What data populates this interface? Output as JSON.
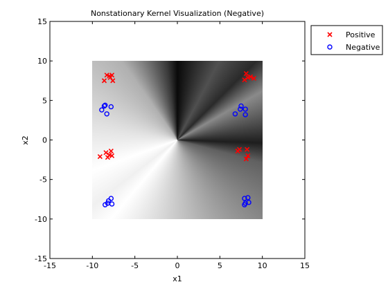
{
  "chart_data": {
    "type": "scatter",
    "title": "Nonstationary Kernel Visualization (Negative)",
    "xlabel": "x1",
    "ylabel": "x2",
    "xlim": [
      -15,
      15
    ],
    "ylim": [
      -15,
      15
    ],
    "xticks": [
      -15,
      -10,
      -5,
      0,
      5,
      10,
      15
    ],
    "yticks": [
      -15,
      -10,
      -5,
      0,
      5,
      10,
      15
    ],
    "grid": false,
    "legend_position": "outside-top-right",
    "background_field": {
      "kind": "angular-gradient",
      "xrange": [
        -10,
        10
      ],
      "yrange": [
        -10,
        10
      ]
    },
    "series": [
      {
        "name": "Positive",
        "marker": "x",
        "color": "#ff0000",
        "points": [
          [
            -8.3,
            8.2
          ],
          [
            -8.0,
            8.1
          ],
          [
            -7.7,
            8.2
          ],
          [
            -7.9,
            7.9
          ],
          [
            -8.6,
            7.5
          ],
          [
            -7.6,
            7.5
          ],
          [
            8.1,
            8.4
          ],
          [
            8.6,
            8.0
          ],
          [
            9.0,
            7.8
          ],
          [
            7.9,
            7.6
          ],
          [
            8.3,
            7.9
          ],
          [
            -9.1,
            -2.1
          ],
          [
            -8.4,
            -1.6
          ],
          [
            -7.8,
            -1.4
          ],
          [
            -8.2,
            -2.2
          ],
          [
            -7.7,
            -2.0
          ],
          [
            -8.0,
            -1.9
          ],
          [
            7.3,
            -1.2
          ],
          [
            7.1,
            -1.4
          ],
          [
            8.2,
            -1.2
          ],
          [
            8.1,
            -2.4
          ],
          [
            8.3,
            -2.0
          ]
        ]
      },
      {
        "name": "Negative",
        "marker": "o",
        "color": "#0000ff",
        "points": [
          [
            -8.9,
            3.8
          ],
          [
            -8.6,
            4.3
          ],
          [
            -8.5,
            4.4
          ],
          [
            -8.3,
            3.3
          ],
          [
            -7.8,
            4.2
          ],
          [
            7.5,
            4.3
          ],
          [
            7.4,
            3.9
          ],
          [
            8.0,
            3.9
          ],
          [
            6.8,
            3.3
          ],
          [
            8.0,
            3.2
          ],
          [
            -8.5,
            -8.2
          ],
          [
            -8.2,
            -8.0
          ],
          [
            -7.8,
            -7.4
          ],
          [
            -8.1,
            -7.7
          ],
          [
            -7.7,
            -8.1
          ],
          [
            7.9,
            -7.4
          ],
          [
            8.3,
            -7.3
          ],
          [
            8.0,
            -8.0
          ],
          [
            8.4,
            -7.9
          ],
          [
            7.9,
            -8.2
          ]
        ]
      }
    ]
  }
}
